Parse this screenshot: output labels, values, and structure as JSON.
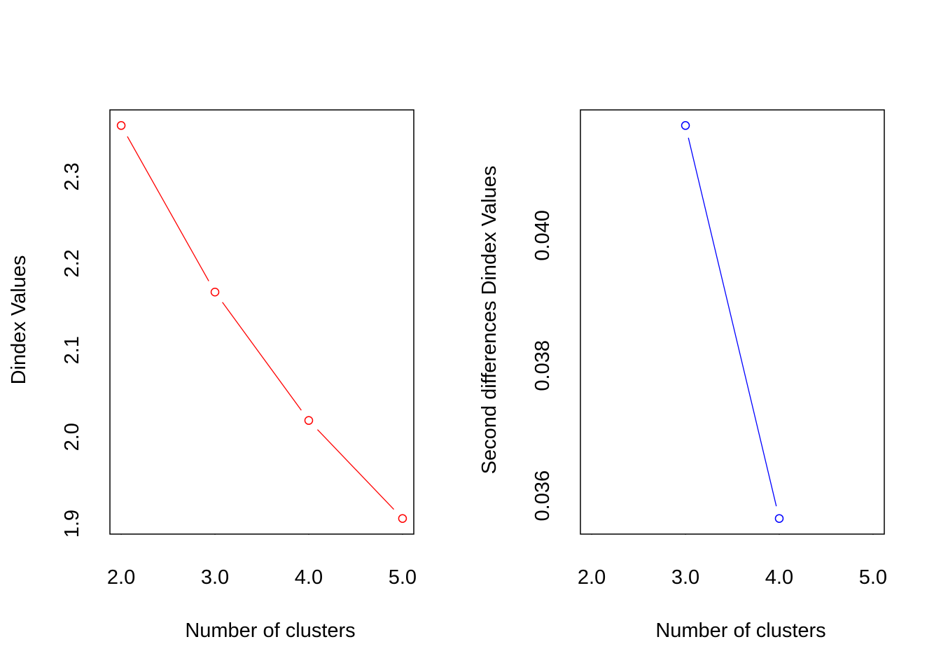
{
  "chart_data": [
    {
      "type": "line",
      "title": "",
      "xlabel": "Number of clusters",
      "ylabel": "Dindex Values",
      "x": [
        2,
        3,
        4,
        5
      ],
      "values": [
        2.359,
        2.167,
        2.019,
        1.906
      ],
      "xlim": [
        1.88,
        5.12
      ],
      "ylim": [
        1.888,
        2.377
      ],
      "xticks": [
        "2.0",
        "3.0",
        "4.0",
        "5.0"
      ],
      "xtick_values": [
        2,
        3,
        4,
        5
      ],
      "yticks": [
        "1.9",
        "2.0",
        "2.1",
        "2.2",
        "2.3"
      ],
      "ytick_values": [
        1.9,
        2.0,
        2.1,
        2.2,
        2.3
      ],
      "color": "#ff0000",
      "grid": false
    },
    {
      "type": "line",
      "title": "",
      "xlabel": "Number of clusters",
      "ylabel": "Second differences Dindex Values",
      "x": [
        3,
        4
      ],
      "values": [
        0.04169,
        0.03565
      ],
      "xlim": [
        1.88,
        5.12
      ],
      "ylim": [
        0.03541,
        0.04193
      ],
      "xticks": [
        "2.0",
        "3.0",
        "4.0",
        "5.0"
      ],
      "xtick_values": [
        2,
        3,
        4,
        5
      ],
      "yticks": [
        "0.036",
        "0.038",
        "0.040"
      ],
      "ytick_values": [
        0.036,
        0.038,
        0.04
      ],
      "color": "#0000ff",
      "grid": false
    }
  ]
}
